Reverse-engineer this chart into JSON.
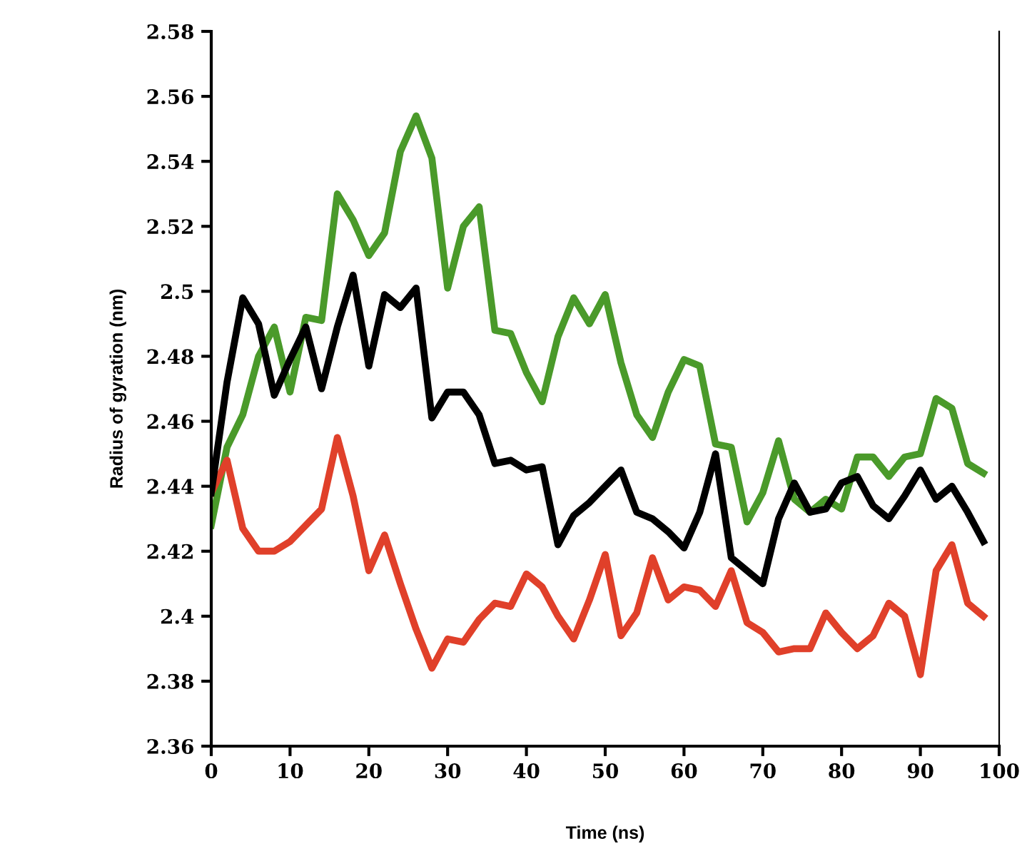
{
  "chart_data": {
    "type": "line",
    "xlabel": "Time (ns)",
    "ylabel": "Radius of gyration (nm)",
    "x": [
      0,
      2,
      4,
      6,
      8,
      10,
      12,
      14,
      16,
      18,
      20,
      22,
      24,
      26,
      28,
      30,
      32,
      34,
      36,
      38,
      40,
      42,
      44,
      46,
      48,
      50,
      52,
      54,
      56,
      58,
      60,
      62,
      64,
      66,
      68,
      70,
      72,
      74,
      76,
      78,
      80,
      82,
      84,
      86,
      88,
      90,
      92,
      94,
      96,
      98
    ],
    "series": [
      {
        "color": "#4a9a2a",
        "values": [
          2.428,
          2.452,
          2.462,
          2.48,
          2.489,
          2.469,
          2.492,
          2.491,
          2.53,
          2.522,
          2.511,
          2.518,
          2.543,
          2.554,
          2.541,
          2.501,
          2.52,
          2.526,
          2.488,
          2.487,
          2.475,
          2.466,
          2.486,
          2.498,
          2.49,
          2.499,
          2.478,
          2.462,
          2.455,
          2.469,
          2.479,
          2.477,
          2.453,
          2.452,
          2.429,
          2.438,
          2.454,
          2.436,
          2.432,
          2.436,
          2.433,
          2.449,
          2.449,
          2.443,
          2.449,
          2.45,
          2.467,
          2.464,
          2.447,
          2.444
        ]
      },
      {
        "color": "#e0402a",
        "values": [
          2.438,
          2.448,
          2.427,
          2.42,
          2.42,
          2.423,
          2.428,
          2.433,
          2.455,
          2.437,
          2.414,
          2.425,
          2.41,
          2.396,
          2.384,
          2.393,
          2.392,
          2.399,
          2.404,
          2.403,
          2.413,
          2.409,
          2.4,
          2.393,
          2.405,
          2.419,
          2.394,
          2.401,
          2.418,
          2.405,
          2.409,
          2.408,
          2.403,
          2.414,
          2.398,
          2.395,
          2.389,
          2.39,
          2.39,
          2.401,
          2.395,
          2.39,
          2.394,
          2.404,
          2.4,
          2.382,
          2.414,
          2.422,
          2.404,
          2.4
        ]
      },
      {
        "color": "#000000",
        "values": [
          2.438,
          2.472,
          2.498,
          2.49,
          2.468,
          2.479,
          2.489,
          2.47,
          2.489,
          2.505,
          2.477,
          2.499,
          2.495,
          2.501,
          2.461,
          2.469,
          2.469,
          2.462,
          2.447,
          2.448,
          2.445,
          2.446,
          2.422,
          2.431,
          2.435,
          2.44,
          2.445,
          2.432,
          2.43,
          2.426,
          2.421,
          2.432,
          2.45,
          2.418,
          2.414,
          2.41,
          2.43,
          2.441,
          2.432,
          2.433,
          2.441,
          2.443,
          2.434,
          2.43,
          2.437,
          2.445,
          2.436,
          2.44,
          2.432,
          2.423
        ]
      }
    ],
    "xlim": [
      0,
      100
    ],
    "xticks": [
      0,
      10,
      20,
      30,
      40,
      50,
      60,
      70,
      80,
      90,
      100
    ],
    "ylim": [
      2.36,
      2.58
    ],
    "yticks": [
      2.36,
      2.38,
      {
        "value": 2.4,
        "label": "2.4"
      },
      2.42,
      2.44,
      2.46,
      2.48,
      {
        "value": 2.5,
        "label": "2.5"
      },
      2.52,
      2.54,
      2.56,
      2.58
    ],
    "grid": false,
    "marker": "none",
    "line_style": "solid"
  }
}
